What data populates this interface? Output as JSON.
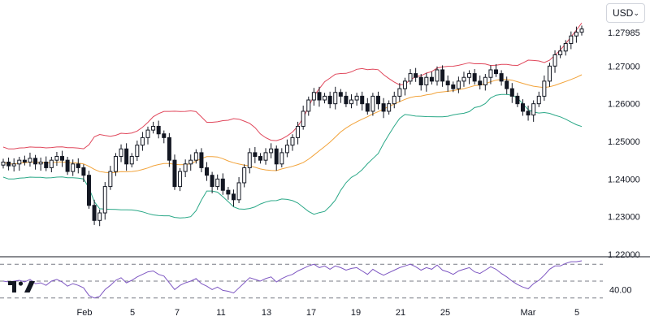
{
  "currency_selector": {
    "label": "USD",
    "icon": "chevron-down-icon"
  },
  "logo": {
    "name": "tradingview-logo"
  },
  "chart_data": [
    {
      "type": "candlestick",
      "overlays": [
        "bollinger-upper",
        "bollinger-basis",
        "bollinger-lower"
      ],
      "y_ticks": [
        "1.27985",
        "1.27000",
        "1.26000",
        "1.25000",
        "1.24000",
        "1.23000",
        "1.22000"
      ],
      "ylim": [
        1.22,
        1.28
      ],
      "x_labels": [
        "Feb",
        "5",
        "7",
        "11",
        "13",
        "17",
        "19",
        "21",
        "25",
        "Mar",
        "5"
      ],
      "colors": {
        "up": "#131722",
        "down": "#131722",
        "upper": "#e0475b",
        "basis": "#f2a33a",
        "lower": "#2aa887"
      },
      "last_price": 1.27985,
      "closes": [
        1.2445,
        1.2435,
        1.244,
        1.245,
        1.2445,
        1.2455,
        1.244,
        1.2445,
        1.243,
        1.245,
        1.246,
        1.245,
        1.242,
        1.244,
        1.243,
        1.241,
        1.233,
        1.229,
        1.231,
        1.238,
        1.242,
        1.246,
        1.248,
        1.244,
        1.246,
        1.249,
        1.251,
        1.253,
        1.254,
        1.252,
        1.251,
        1.245,
        1.238,
        1.242,
        1.244,
        1.245,
        1.247,
        1.243,
        1.241,
        1.238,
        1.24,
        1.237,
        1.236,
        1.2345,
        1.239,
        1.243,
        1.247,
        1.246,
        1.245,
        1.247,
        1.248,
        1.244,
        1.247,
        1.249,
        1.251,
        1.254,
        1.258,
        1.261,
        1.263,
        1.261,
        1.262,
        1.26,
        1.263,
        1.262,
        1.26,
        1.261,
        1.262,
        1.26,
        1.258,
        1.262,
        1.26,
        1.258,
        1.26,
        1.262,
        1.264,
        1.266,
        1.268,
        1.267,
        1.265,
        1.267,
        1.266,
        1.269,
        1.266,
        1.265,
        1.264,
        1.266,
        1.267,
        1.268,
        1.266,
        1.265,
        1.267,
        1.269,
        1.268,
        1.266,
        1.264,
        1.262,
        1.26,
        1.258,
        1.257,
        1.26,
        1.262,
        1.266,
        1.27,
        1.273,
        1.274,
        1.276,
        1.278,
        1.279,
        1.27985
      ]
    },
    {
      "type": "line",
      "indicator": "rsi",
      "y_ticks": [
        "40.00"
      ],
      "levels": [
        70,
        50,
        30
      ],
      "ylim": [
        25,
        75
      ],
      "color": "#7e57c2",
      "values": [
        50,
        49,
        50,
        51,
        49,
        52,
        47,
        48,
        45,
        50,
        52,
        49,
        44,
        47,
        45,
        42,
        33,
        30,
        32,
        40,
        45,
        51,
        54,
        48,
        51,
        55,
        58,
        61,
        62,
        58,
        56,
        48,
        40,
        45,
        48,
        50,
        53,
        47,
        44,
        40,
        43,
        39,
        38,
        36,
        42,
        48,
        54,
        52,
        50,
        53,
        55,
        49,
        53,
        56,
        58,
        62,
        65,
        68,
        70,
        66,
        68,
        64,
        68,
        66,
        63,
        65,
        66,
        62,
        58,
        64,
        60,
        57,
        60,
        63,
        66,
        68,
        70,
        67,
        63,
        66,
        64,
        69,
        63,
        61,
        58,
        62,
        64,
        66,
        61,
        59,
        63,
        67,
        64,
        59,
        55,
        50,
        46,
        43,
        41,
        47,
        51,
        57,
        64,
        68,
        68,
        71,
        73,
        73,
        74
      ]
    }
  ]
}
